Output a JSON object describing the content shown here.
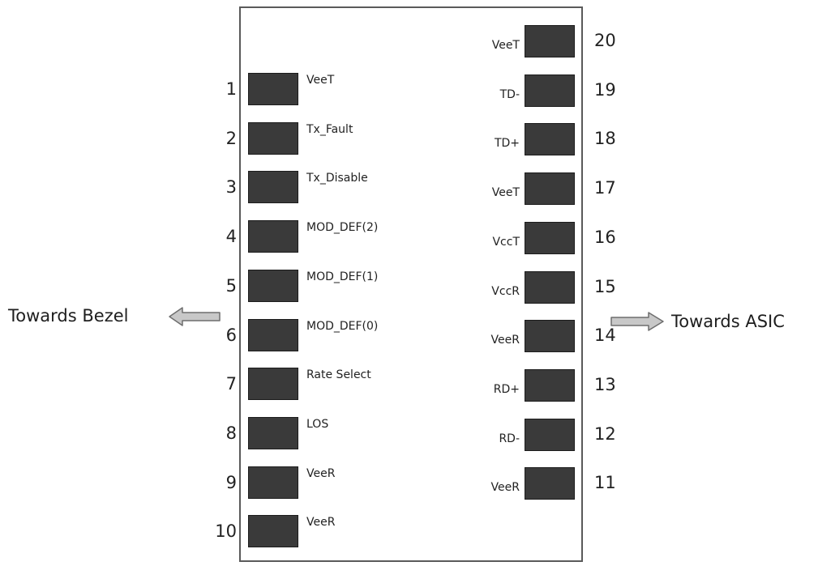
{
  "left_pins": [
    {
      "number": "1",
      "label": "VeeT"
    },
    {
      "number": "2",
      "label": "Tx_Fault"
    },
    {
      "number": "3",
      "label": "Tx_Disable"
    },
    {
      "number": "4",
      "label": "MOD_DEF(2)"
    },
    {
      "number": "5",
      "label": "MOD_DEF(1)"
    },
    {
      "number": "6",
      "label": "MOD_DEF(0)"
    },
    {
      "number": "7",
      "label": "Rate Select"
    },
    {
      "number": "8",
      "label": "LOS"
    },
    {
      "number": "9",
      "label": "VeeR"
    },
    {
      "number": "10",
      "label": "VeeR"
    }
  ],
  "right_pins": [
    {
      "number": "20",
      "label": "VeeT"
    },
    {
      "number": "19",
      "label": "TD-"
    },
    {
      "number": "18",
      "label": "TD+"
    },
    {
      "number": "17",
      "label": "VeeT"
    },
    {
      "number": "16",
      "label": "VccT"
    },
    {
      "number": "15",
      "label": "VccR"
    },
    {
      "number": "14",
      "label": "VeeR"
    },
    {
      "number": "13",
      "label": "RD+"
    },
    {
      "number": "12",
      "label": "RD-"
    },
    {
      "number": "11",
      "label": "VeeR"
    }
  ],
  "left_direction": {
    "text": "Towards Bezel"
  },
  "right_direction": {
    "text": "Towards ASIC"
  },
  "colors": {
    "pad": "#3a3a3a",
    "outline": "#5a5a5a",
    "arrow_fill": "#c8c8c8",
    "arrow_stroke": "#6e6e6e"
  }
}
